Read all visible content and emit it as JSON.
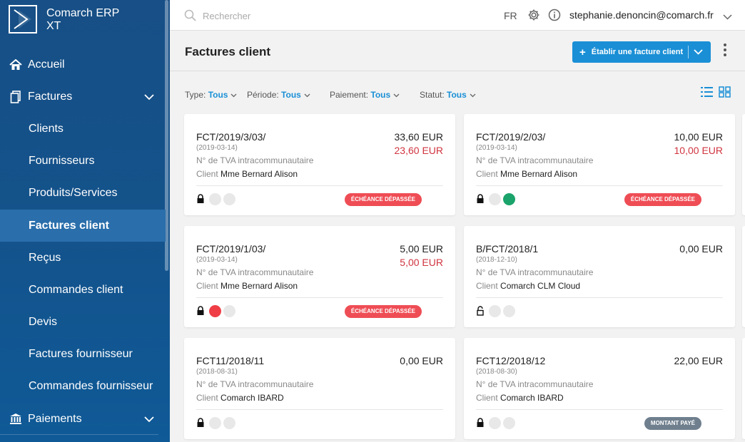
{
  "app": {
    "name_line1": "Comarch ERP",
    "name_line2": "XT"
  },
  "sidebar": {
    "items": [
      {
        "label": "Accueil",
        "icon": "home-icon"
      },
      {
        "label": "Factures",
        "icon": "invoice-icon"
      },
      {
        "label": "Clients"
      },
      {
        "label": "Fournisseurs"
      },
      {
        "label": "Produits/Services"
      },
      {
        "label": "Factures client"
      },
      {
        "label": "Reçus"
      },
      {
        "label": "Commandes client"
      },
      {
        "label": "Devis"
      },
      {
        "label": "Factures fournisseur"
      },
      {
        "label": "Commandes fournisseur"
      },
      {
        "label": "Paiements",
        "icon": "bank-icon"
      }
    ],
    "active": "Factures client"
  },
  "topbar": {
    "search_placeholder": "Rechercher",
    "lang": "FR",
    "user": "stephanie.denoncin@comarch.fr"
  },
  "header": {
    "title": "Factures client",
    "create_button": "Établir une facture client"
  },
  "filters": [
    {
      "label": "Type:",
      "value": "Tous"
    },
    {
      "label": "Période:",
      "value": "Tous"
    },
    {
      "label": "Paiement:",
      "value": "Tous"
    },
    {
      "label": "Statut:",
      "value": "Tous"
    }
  ],
  "invoices": [
    {
      "number": "FCT/2019/3/03/",
      "date": "(2019-03-14)",
      "vat": "N° de TVA intracommunautaire",
      "client_label": "Client",
      "client": "Mme Bernard Alison",
      "amount": "33,60 EUR",
      "due": "23,60 EUR",
      "status": "ÉCHÉANCE DÉPASSÉE",
      "locked": true,
      "dots": [
        "grey",
        "grey"
      ]
    },
    {
      "number": "FCT/2019/2/03/",
      "date": "(2019-03-14)",
      "vat": "N° de TVA intracommunautaire",
      "client_label": "Client",
      "client": "Mme Bernard Alison",
      "amount": "10,00 EUR",
      "due": "10,00 EUR",
      "status": "ÉCHÉANCE DÉPASSÉE",
      "locked": true,
      "dots": [
        "grey",
        "green"
      ]
    },
    {
      "number": "FCT/2019/1/03/",
      "date": "(2019-03-14)",
      "vat": "N° de TVA intracommunautaire",
      "client_label": "Client",
      "client": "Mme Bernard Alison",
      "amount": "5,00 EUR",
      "due": "5,00 EUR",
      "status": "ÉCHÉANCE DÉPASSÉE",
      "locked": true,
      "dots": [
        "red",
        "grey"
      ]
    },
    {
      "number": "B/FCT/2018/1",
      "date": "(2018-12-10)",
      "vat": "N° de TVA intracommunautaire",
      "client_label": "Client",
      "client": "Comarch CLM Cloud",
      "amount": "0,00 EUR",
      "due": "",
      "status": "",
      "locked": false,
      "dots": [
        "grey",
        "grey"
      ]
    },
    {
      "number": "FCT11/2018/11",
      "date": "(2018-08-31)",
      "vat": "N° de TVA intracommunautaire",
      "client_label": "Client",
      "client": "Comarch IBARD",
      "amount": "0,00 EUR",
      "due": "",
      "status": "",
      "locked": true,
      "dots": [
        "grey",
        "grey"
      ]
    },
    {
      "number": "FCT12/2018/12",
      "date": "(2018-08-30)",
      "vat": "N° de TVA intracommunautaire",
      "client_label": "Client",
      "client": "Comarch IBARD",
      "amount": "22,00 EUR",
      "due": "",
      "status": "MONTANT PAYÉ",
      "locked": true,
      "dots": [
        "grey",
        "grey"
      ]
    }
  ],
  "colors": {
    "sidebar": "#174f86",
    "accent": "#1a8fd6",
    "overdue": "#ef4d55",
    "paid": "#6f7f8e",
    "due_text": "#d0343f"
  }
}
